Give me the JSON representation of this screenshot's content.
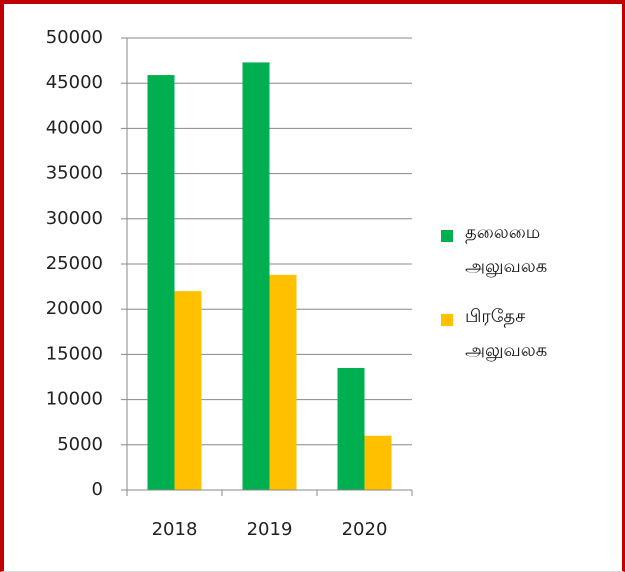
{
  "chart_data": {
    "type": "bar",
    "categories": [
      "2018",
      "2019",
      "2020"
    ],
    "series": [
      {
        "name": "தலைமை அலுவலக",
        "color": "#00b050",
        "values": [
          45900,
          47300,
          13500
        ]
      },
      {
        "name": "பிரதேச அலுவலக",
        "color": "#ffc000",
        "values": [
          22000,
          23800,
          6000
        ]
      }
    ],
    "ylim": [
      0,
      50000
    ],
    "yticks": [
      0,
      5000,
      10000,
      15000,
      20000,
      25000,
      30000,
      35000,
      40000,
      45000,
      50000
    ],
    "grid": true,
    "legend": "right"
  }
}
